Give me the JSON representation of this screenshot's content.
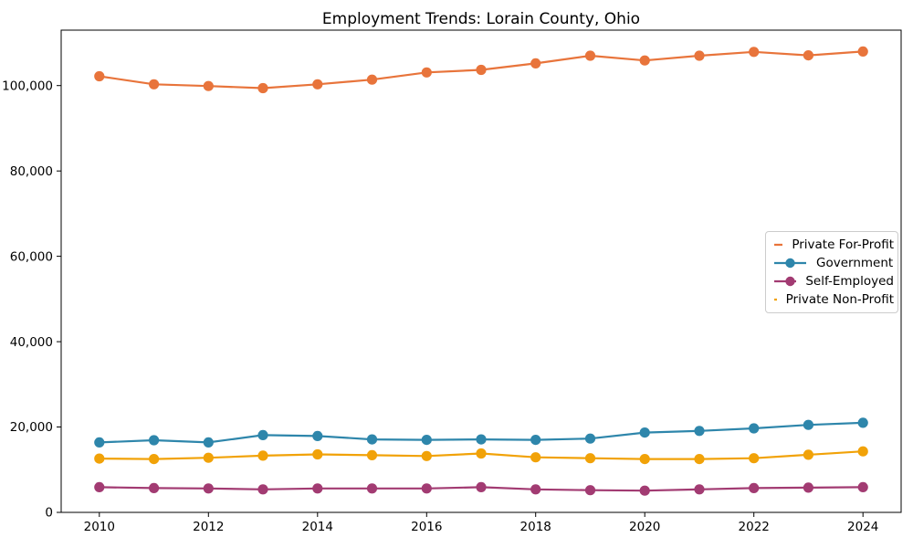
{
  "chart_data": {
    "type": "line",
    "title": "Employment Trends: Lorain County, Ohio",
    "x": [
      2010,
      2011,
      2012,
      2013,
      2014,
      2015,
      2016,
      2017,
      2018,
      2019,
      2020,
      2021,
      2022,
      2023,
      2024
    ],
    "series": [
      {
        "name": "Private For-Profit",
        "color": "#e8743b",
        "values": [
          102200,
          100300,
          99900,
          99400,
          100300,
          101400,
          103100,
          103700,
          105200,
          107000,
          105900,
          107000,
          107900,
          107100,
          108000
        ]
      },
      {
        "name": "Government",
        "color": "#2e86ab",
        "values": [
          16400,
          16900,
          16400,
          18100,
          17900,
          17100,
          17000,
          17100,
          17000,
          17300,
          18700,
          19100,
          19700,
          20500,
          21000
        ]
      },
      {
        "name": "Self-Employed",
        "color": "#a23b72",
        "values": [
          5900,
          5700,
          5600,
          5400,
          5600,
          5600,
          5600,
          5900,
          5400,
          5200,
          5100,
          5400,
          5700,
          5800,
          5900
        ]
      },
      {
        "name": "Private Non-Profit",
        "color": "#f1a208",
        "values": [
          12600,
          12500,
          12800,
          13300,
          13600,
          13400,
          13200,
          13800,
          12900,
          12700,
          12500,
          12500,
          12700,
          13500,
          14300
        ]
      }
    ],
    "xticks": [
      2010,
      2012,
      2014,
      2016,
      2018,
      2020,
      2022,
      2024
    ],
    "yticks": [
      0,
      20000,
      40000,
      60000,
      80000,
      100000
    ],
    "ytick_labels": [
      "0",
      "20,000",
      "40,000",
      "60,000",
      "80,000",
      "100,000"
    ],
    "xlim": [
      2009.3,
      2024.7
    ],
    "ylim": [
      0,
      113000
    ],
    "grid": false,
    "legend_position": "center-right",
    "axis_color": "#000000",
    "background_color": "#ffffff"
  }
}
